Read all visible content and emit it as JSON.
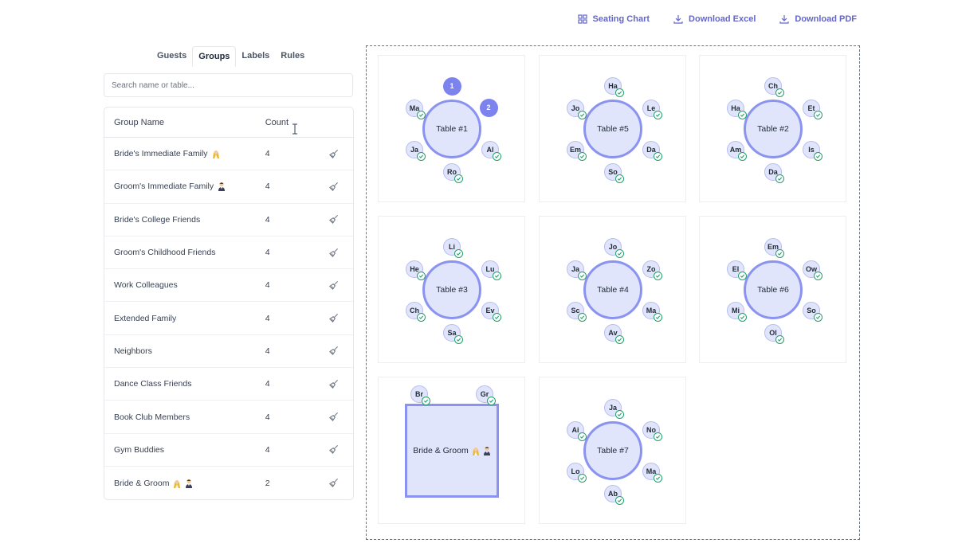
{
  "toolbar": {
    "seating_chart": "Seating Chart",
    "download_excel": "Download Excel",
    "download_pdf": "Download PDF"
  },
  "tabs": [
    "Guests",
    "Groups",
    "Labels",
    "Rules"
  ],
  "active_tab": "Groups",
  "search": {
    "placeholder": "Search name or table..."
  },
  "groups_table": {
    "headers": {
      "name": "Group Name",
      "count": "Count"
    },
    "rows": [
      {
        "name": "Bride's Immediate Family",
        "count": "4",
        "icons": [
          "bride-icon"
        ]
      },
      {
        "name": "Groom's Immediate Family",
        "count": "4",
        "icons": [
          "groom-icon"
        ]
      },
      {
        "name": "Bride's College Friends",
        "count": "4",
        "icons": []
      },
      {
        "name": "Groom's Childhood Friends",
        "count": "4",
        "icons": []
      },
      {
        "name": "Work Colleagues",
        "count": "4",
        "icons": []
      },
      {
        "name": "Extended Family",
        "count": "4",
        "icons": []
      },
      {
        "name": "Neighbors",
        "count": "4",
        "icons": []
      },
      {
        "name": "Dance Class Friends",
        "count": "4",
        "icons": []
      },
      {
        "name": "Book Club Members",
        "count": "4",
        "icons": []
      },
      {
        "name": "Gym Buddies",
        "count": "4",
        "icons": []
      },
      {
        "name": "Bride & Groom",
        "count": "2",
        "icons": [
          "bride-icon",
          "groom-icon"
        ]
      }
    ]
  },
  "tables": [
    {
      "label": "Table #1",
      "shape": "round",
      "seats": [
        {
          "label": "1",
          "numbered": true
        },
        {
          "label": "2",
          "numbered": true
        },
        {
          "label": "Al"
        },
        {
          "label": "Ro"
        },
        {
          "label": "Ja"
        },
        {
          "label": "Ma"
        }
      ]
    },
    {
      "label": "Table #5",
      "shape": "round",
      "seats": [
        {
          "label": "Ha"
        },
        {
          "label": "Le"
        },
        {
          "label": "Da"
        },
        {
          "label": "So"
        },
        {
          "label": "Em"
        },
        {
          "label": "Jo"
        }
      ]
    },
    {
      "label": "Table #2",
      "shape": "round",
      "seats": [
        {
          "label": "Ch"
        },
        {
          "label": "Et"
        },
        {
          "label": "Is"
        },
        {
          "label": "Da"
        },
        {
          "label": "Am"
        },
        {
          "label": "Ha"
        }
      ]
    },
    {
      "label": "Table #3",
      "shape": "round",
      "seats": [
        {
          "label": "Li"
        },
        {
          "label": "Lu"
        },
        {
          "label": "Ev"
        },
        {
          "label": "Sa"
        },
        {
          "label": "Ch"
        },
        {
          "label": "He"
        }
      ]
    },
    {
      "label": "Table #4",
      "shape": "round",
      "seats": [
        {
          "label": "Jo"
        },
        {
          "label": "Zo"
        },
        {
          "label": "Ma"
        },
        {
          "label": "Av"
        },
        {
          "label": "Sc"
        },
        {
          "label": "Ja"
        }
      ]
    },
    {
      "label": "Table #6",
      "shape": "round",
      "seats": [
        {
          "label": "Em"
        },
        {
          "label": "Ow"
        },
        {
          "label": "So"
        },
        {
          "label": "Ol"
        },
        {
          "label": "Mi"
        },
        {
          "label": "El"
        }
      ]
    },
    {
      "label": "Bride & Groom",
      "shape": "rect",
      "icons": [
        "bride-icon",
        "groom-icon"
      ],
      "seats": [
        {
          "label": "Br"
        },
        {
          "label": "Gr"
        }
      ]
    },
    {
      "label": "Table #7",
      "shape": "round",
      "seats": [
        {
          "label": "Ja"
        },
        {
          "label": "No"
        },
        {
          "label": "Ma"
        },
        {
          "label": "Ab"
        },
        {
          "label": "Lo"
        },
        {
          "label": "Ai"
        }
      ]
    }
  ],
  "colors": {
    "accent": "#6366c9",
    "table_fill": "#e0e5fb",
    "table_border": "#8b93f0",
    "seat_number": "#7c83ef",
    "check": "#22a06b"
  }
}
